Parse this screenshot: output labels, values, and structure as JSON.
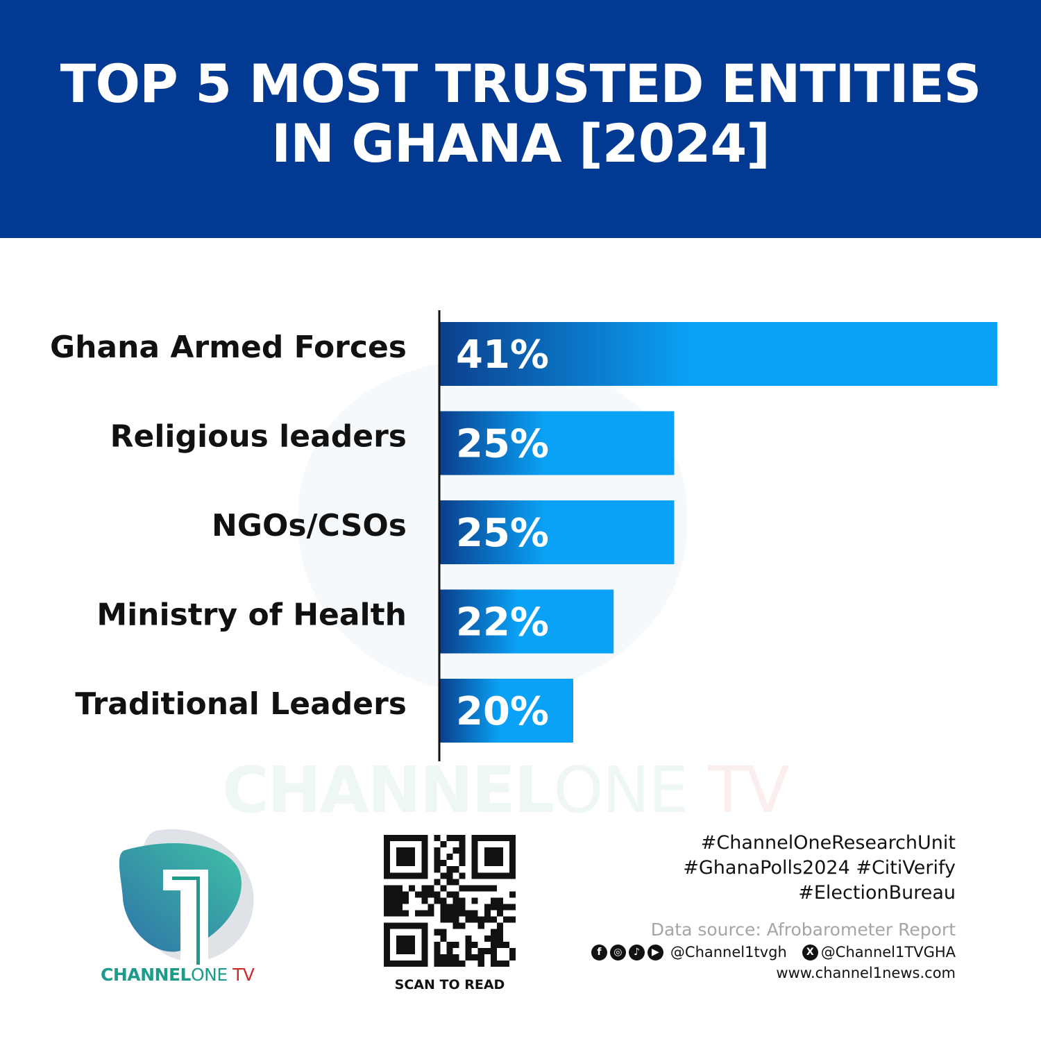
{
  "header": {
    "title_line1": "TOP 5 MOST TRUSTED ENTITIES",
    "title_line2": "IN GHANA [2024]"
  },
  "chart_data": {
    "type": "bar",
    "orientation": "horizontal",
    "title": "TOP 5 MOST TRUSTED ENTITIES IN GHANA [2024]",
    "categories": [
      "Ghana Armed Forces",
      "Religious leaders",
      "NGOs/CSOs",
      "Ministry of Health",
      "Traditional Leaders"
    ],
    "values": [
      41,
      25,
      25,
      22,
      20
    ],
    "value_labels": [
      "41%",
      "25%",
      "25%",
      "22%",
      "20%"
    ],
    "xlim": [
      13.4,
      41
    ],
    "grid": false,
    "bar_gradient": [
      "#0b3f8c",
      "#0aa2f6"
    ]
  },
  "watermark": {
    "brand": "CHANNEL",
    "one": "ONE",
    "tv": "TV"
  },
  "logo": {
    "brand": "CHANNEL",
    "one": "ONE",
    "tv": " TV"
  },
  "qr": {
    "caption": "SCAN TO READ"
  },
  "footer": {
    "tags": [
      "#ChannelOneResearchUnit",
      "#GhanaPolls2024 #CitiVerify",
      "#ElectionBureau"
    ],
    "source": "Data source: Afrobarometer Report",
    "social_icons": [
      "facebook-icon",
      "instagram-icon",
      "tiktok-icon",
      "youtube-icon",
      "x-icon"
    ],
    "handle1": "@Channel1tvgh",
    "handle2": "@Channel1TVGHA",
    "website": "www.channel1news.com"
  }
}
